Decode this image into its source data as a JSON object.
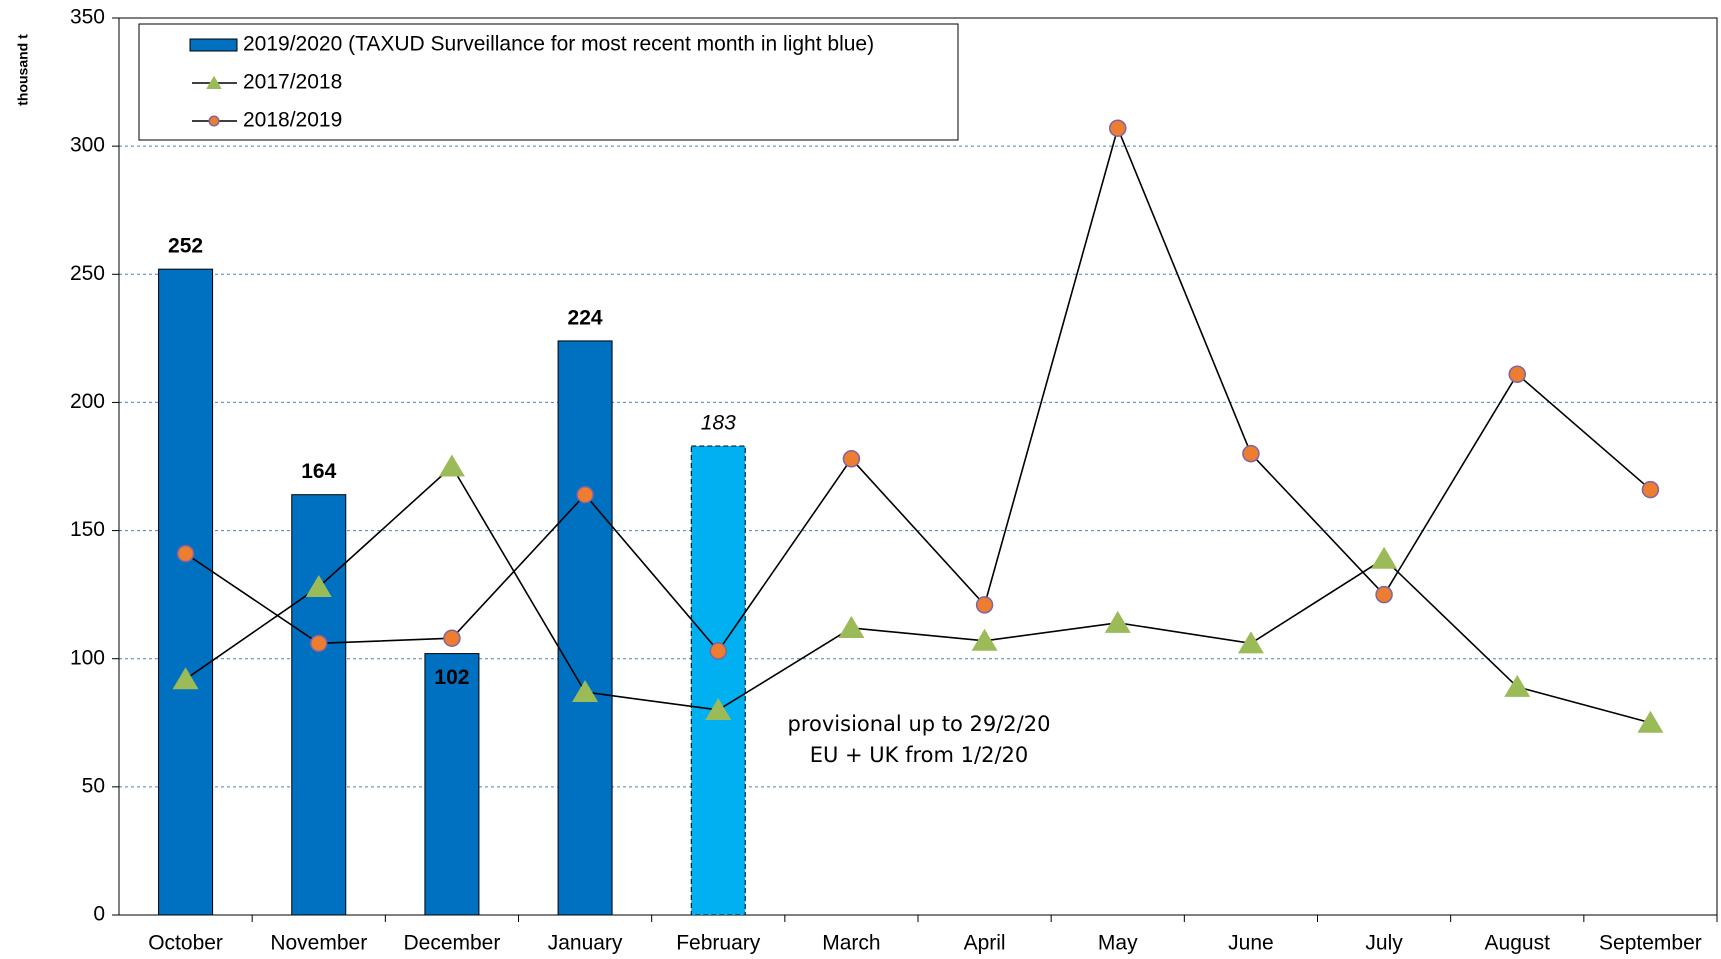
{
  "chart_data": {
    "type": "bar",
    "y_label": "thousand t",
    "categories": [
      "October",
      "November",
      "December",
      "January",
      "February",
      "March",
      "April",
      "May",
      "June",
      "July",
      "August",
      "September"
    ],
    "ylim": [
      0,
      350
    ],
    "yticks": [
      0,
      50,
      100,
      150,
      200,
      250,
      300,
      350
    ],
    "grid": true,
    "legend": "top-left",
    "series": [
      {
        "name": "2019/2020 (TAXUD Surveillance for most recent month in light blue)",
        "type": "bar",
        "color": "#0070c0",
        "colors": [
          "#0070c0",
          "#0070c0",
          "#0070c0",
          "#0070c0",
          "#00b0f0",
          null,
          null,
          null,
          null,
          null,
          null,
          null
        ],
        "values": [
          252,
          164,
          102,
          224,
          183,
          null,
          null,
          null,
          null,
          null,
          null,
          null
        ]
      },
      {
        "name": "2017/2018",
        "type": "line",
        "marker": "triangle",
        "color": "#9bbb59",
        "values": [
          92,
          128,
          175,
          87,
          80,
          112,
          107,
          114,
          106,
          139,
          89,
          75
        ]
      },
      {
        "name": "2018/2019",
        "type": "line",
        "marker": "circle",
        "color": "#ed7d31",
        "values": [
          141,
          106,
          108,
          164,
          103,
          178,
          121,
          307,
          180,
          125,
          211,
          166
        ]
      }
    ],
    "annotation": [
      "provisional up to 29/2/20",
      "EU + UK from 1/2/20"
    ]
  }
}
